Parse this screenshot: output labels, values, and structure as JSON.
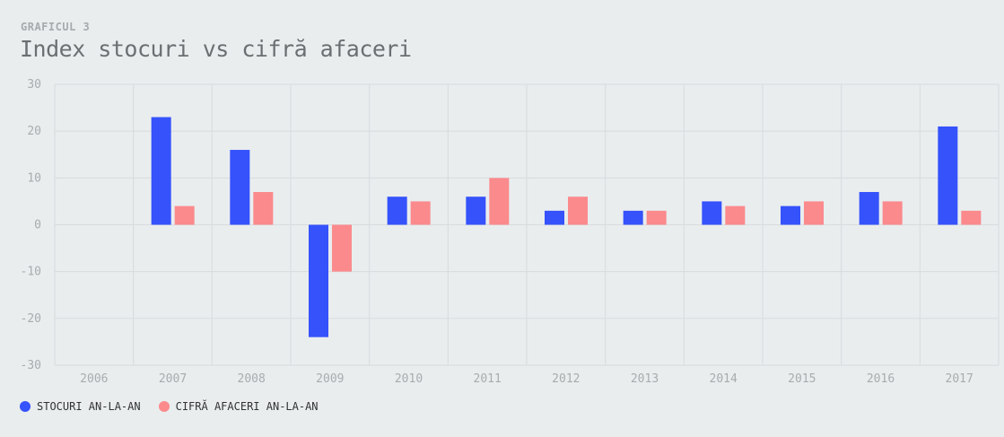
{
  "header": {
    "kicker": "GRAFICUL 3",
    "title": "Index stocuri vs cifră afaceri"
  },
  "colors": {
    "stocuri": "#3552fb",
    "cifra": "#fb8a8d",
    "grid": "#d8dcde"
  },
  "chart_data": {
    "type": "bar",
    "title": "Index stocuri vs cifră afaceri",
    "categories": [
      "2006",
      "2007",
      "2008",
      "2009",
      "2010",
      "2011",
      "2012",
      "2013",
      "2014",
      "2015",
      "2016",
      "2017"
    ],
    "series": [
      {
        "name": "STOCURI AN-LA-AN",
        "values": [
          null,
          23,
          16,
          -24,
          6,
          6,
          3,
          3,
          5,
          4,
          7,
          21
        ]
      },
      {
        "name": "CIFRĂ AFACERI AN-LA-AN",
        "values": [
          null,
          4,
          7,
          -10,
          5,
          10,
          6,
          3,
          4,
          5,
          5,
          3
        ]
      }
    ],
    "ylim": [
      -30,
      30
    ],
    "yticks": [
      "30",
      "20",
      "10",
      "0",
      "-10",
      "-20",
      "-30"
    ],
    "grid": true,
    "legend": "bottom-left",
    "xlabel": "",
    "ylabel": ""
  }
}
